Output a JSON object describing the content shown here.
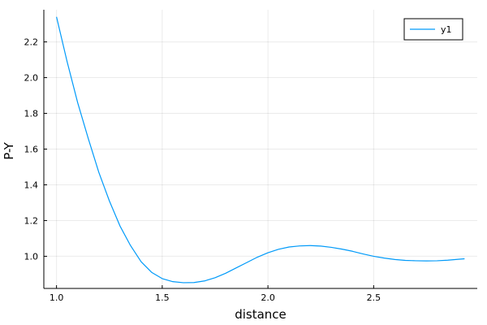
{
  "chart_data": {
    "type": "line",
    "title": "",
    "xlabel": "distance",
    "ylabel": "P-Y",
    "xlim": [
      0.94,
      2.99
    ],
    "ylim": [
      0.82,
      2.38
    ],
    "grid": true,
    "legend_position": "top-right",
    "x_ticks": [
      1.0,
      1.5,
      2.0,
      2.5
    ],
    "x_tick_labels": [
      "1.0",
      "1.5",
      "2.0",
      "2.5"
    ],
    "y_ticks": [
      1.0,
      1.2,
      1.4,
      1.6,
      1.8,
      2.0,
      2.2
    ],
    "y_tick_labels": [
      "1.0",
      "1.2",
      "1.4",
      "1.6",
      "1.8",
      "2.0",
      "2.2"
    ],
    "series": [
      {
        "name": "y1",
        "color": "#009af9",
        "x": [
          1.0,
          1.05,
          1.1,
          1.15,
          1.2,
          1.25,
          1.3,
          1.35,
          1.4,
          1.45,
          1.5,
          1.55,
          1.6,
          1.65,
          1.7,
          1.75,
          1.8,
          1.85,
          1.9,
          1.95,
          2.0,
          2.05,
          2.1,
          2.15,
          2.2,
          2.25,
          2.3,
          2.35,
          2.4,
          2.45,
          2.5,
          2.55,
          2.6,
          2.65,
          2.7,
          2.75,
          2.8,
          2.85,
          2.9,
          2.93
        ],
        "y": [
          2.34,
          2.09,
          1.86,
          1.66,
          1.47,
          1.31,
          1.17,
          1.06,
          0.97,
          0.91,
          0.875,
          0.858,
          0.852,
          0.853,
          0.862,
          0.88,
          0.905,
          0.935,
          0.965,
          0.995,
          1.02,
          1.039,
          1.052,
          1.058,
          1.06,
          1.057,
          1.05,
          1.04,
          1.028,
          1.013,
          1.0,
          0.99,
          0.982,
          0.977,
          0.975,
          0.974,
          0.975,
          0.978,
          0.983,
          0.986
        ]
      }
    ]
  }
}
